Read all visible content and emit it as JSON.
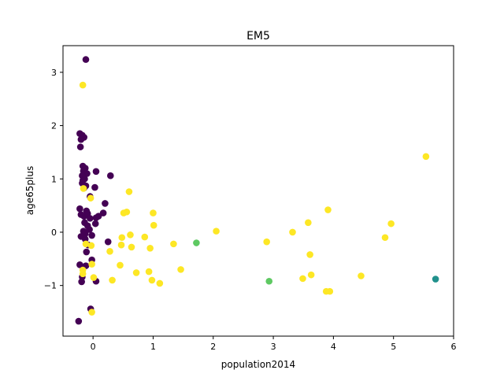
{
  "chart_data": {
    "type": "scatter",
    "title": "EM5",
    "xlabel": "population2014",
    "ylabel": "age65plus",
    "xlim": [
      -0.5,
      6
    ],
    "ylim": [
      -1.95,
      3.5
    ],
    "xticks": [
      0,
      1,
      2,
      3,
      4,
      5,
      6
    ],
    "xtick_labels": [
      "0",
      "1",
      "2",
      "3",
      "4",
      "5",
      "6"
    ],
    "yticks": [
      -1,
      0,
      1,
      2,
      3
    ],
    "ytick_labels": [
      "−1",
      "0",
      "1",
      "2",
      "3"
    ],
    "grid": false,
    "series": [
      {
        "color": "#440154",
        "points": [
          [
            -0.12,
            3.24
          ],
          [
            -0.22,
            1.85
          ],
          [
            -0.18,
            1.82
          ],
          [
            -0.15,
            1.78
          ],
          [
            -0.2,
            1.74
          ],
          [
            -0.21,
            1.6
          ],
          [
            -0.17,
            1.24
          ],
          [
            -0.13,
            1.2
          ],
          [
            -0.16,
            1.15
          ],
          [
            0.05,
            1.14
          ],
          [
            -0.1,
            1.1
          ],
          [
            0.29,
            1.06
          ],
          [
            -0.18,
            1.06
          ],
          [
            -0.14,
            1.0
          ],
          [
            -0.17,
            0.97
          ],
          [
            -0.18,
            0.92
          ],
          [
            -0.12,
            0.87
          ],
          [
            0.03,
            0.84
          ],
          [
            -0.15,
            0.83
          ],
          [
            -0.05,
            0.67
          ],
          [
            0.2,
            0.54
          ],
          [
            -0.22,
            0.44
          ],
          [
            -0.11,
            0.4
          ],
          [
            -0.2,
            0.33
          ],
          [
            -0.15,
            0.3
          ],
          [
            -0.09,
            0.35
          ],
          [
            0.17,
            0.36
          ],
          [
            0.09,
            0.3
          ],
          [
            -0.05,
            0.26
          ],
          [
            0.05,
            0.27
          ],
          [
            -0.14,
            0.18
          ],
          [
            0.04,
            0.16
          ],
          [
            -0.09,
            0.12
          ],
          [
            -0.06,
            0.05
          ],
          [
            -0.16,
            0.02
          ],
          [
            -0.13,
            -0.03
          ],
          [
            -0.02,
            -0.06
          ],
          [
            -0.2,
            -0.08
          ],
          [
            -0.13,
            -0.13
          ],
          [
            0.25,
            -0.18
          ],
          [
            -0.08,
            -0.24
          ],
          [
            -0.11,
            -0.37
          ],
          [
            -0.02,
            -0.52
          ],
          [
            -0.22,
            -0.61
          ],
          [
            -0.12,
            -0.63
          ],
          [
            -0.18,
            -0.84
          ],
          [
            0.05,
            -0.92
          ],
          [
            -0.19,
            -0.93
          ],
          [
            -0.04,
            -1.44
          ],
          [
            -0.24,
            -1.67
          ]
        ]
      },
      {
        "color": "#fde725",
        "points": [
          [
            -0.17,
            2.76
          ],
          [
            -0.04,
            0.64
          ],
          [
            -0.16,
            0.82
          ],
          [
            0.6,
            0.76
          ],
          [
            0.56,
            0.38
          ],
          [
            0.51,
            0.36
          ],
          [
            1.0,
            0.36
          ],
          [
            1.01,
            0.13
          ],
          [
            0.62,
            -0.05
          ],
          [
            0.48,
            -0.1
          ],
          [
            0.86,
            -0.09
          ],
          [
            0.47,
            -0.24
          ],
          [
            0.64,
            -0.28
          ],
          [
            0.95,
            -0.3
          ],
          [
            0.28,
            -0.36
          ],
          [
            1.34,
            -0.22
          ],
          [
            0.45,
            -0.62
          ],
          [
            0.72,
            -0.76
          ],
          [
            0.93,
            -0.74
          ],
          [
            1.46,
            -0.7
          ],
          [
            0.98,
            -0.9
          ],
          [
            1.11,
            -0.96
          ],
          [
            0.32,
            -0.9
          ],
          [
            0.01,
            -0.85
          ],
          [
            -0.17,
            -0.71
          ],
          [
            -0.17,
            -0.78
          ],
          [
            -0.12,
            -0.22
          ],
          [
            -0.02,
            -0.6
          ],
          [
            -0.03,
            -0.25
          ],
          [
            -0.02,
            -1.5
          ],
          [
            2.05,
            0.02
          ],
          [
            2.89,
            -0.18
          ],
          [
            3.32,
            0.0
          ],
          [
            3.58,
            0.18
          ],
          [
            3.91,
            0.42
          ],
          [
            3.61,
            -0.42
          ],
          [
            3.49,
            -0.87
          ],
          [
            3.63,
            -0.8
          ],
          [
            3.88,
            -1.11
          ],
          [
            3.94,
            -1.11
          ],
          [
            4.46,
            -0.82
          ],
          [
            4.86,
            -0.1
          ],
          [
            4.96,
            0.16
          ],
          [
            5.54,
            1.42
          ]
        ]
      },
      {
        "color": "#5ec962",
        "points": [
          [
            1.72,
            -0.2
          ],
          [
            2.93,
            -0.92
          ]
        ]
      },
      {
        "color": "#21918c",
        "points": [
          [
            5.7,
            -0.88
          ]
        ]
      }
    ]
  }
}
